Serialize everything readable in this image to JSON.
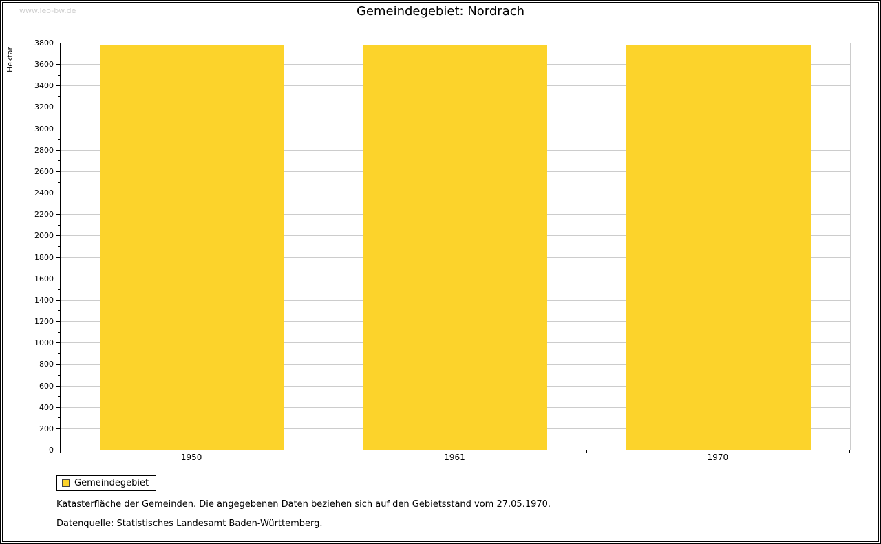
{
  "watermark": "www.leo-bw.de",
  "title": "Gemeindegebiet: Nordrach",
  "ylabel": "Hektar",
  "legend": {
    "label": "Gemeindegebiet",
    "color": "#fcd32b"
  },
  "footnote1": "Katasterfläche der Gemeinden. Die angegebenen Daten beziehen sich auf den Gebietsstand vom 27.05.1970.",
  "footnote2": "Datenquelle: Statistisches Landesamt Baden-Württemberg.",
  "chart_data": {
    "type": "bar",
    "title": "Gemeindegebiet: Nordrach",
    "categories": [
      "1950",
      "1961",
      "1970"
    ],
    "values": [
      3775,
      3775,
      3775
    ],
    "series_name": "Gemeindegebiet",
    "xlabel": "",
    "ylabel": "Hektar",
    "ylim": [
      0,
      3800
    ],
    "ytick_step": 200,
    "bar_color": "#fcd32b",
    "grid": true,
    "gridline_color": "#cccccc",
    "legend_position": "bottom-left"
  }
}
